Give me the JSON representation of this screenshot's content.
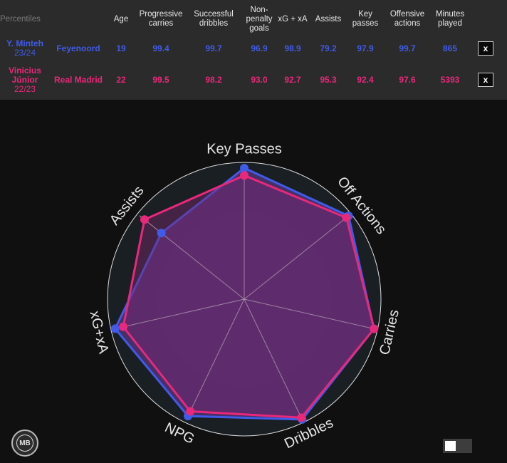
{
  "table": {
    "headers": {
      "percentiles": "Percentiles",
      "team": "",
      "age": "Age",
      "progressive_carries": "Progressive carries",
      "successful_dribbles": "Successful dribbles",
      "npg": "Non-penalty goals",
      "xg_xa": "xG + xA",
      "assists": "Assists",
      "key_passes": "Key passes",
      "offensive_actions": "Offensive actions",
      "minutes": "Minutes played"
    },
    "rows": [
      {
        "player": "Y. Minteh",
        "season": "23/24",
        "team": "Feyenoord",
        "age": "19",
        "progressive_carries": "99.4",
        "successful_dribbles": "99.7",
        "npg": "96.9",
        "xg_xa": "98.9",
        "assists": "79.2",
        "key_passes": "97.9",
        "offensive_actions": "99.7",
        "minutes": "865",
        "remove_label": "x",
        "color": "#3f5be8"
      },
      {
        "player": "Vinicius Júnior",
        "season": "22/23",
        "team": "Real Madrid",
        "age": "22",
        "progressive_carries": "99.5",
        "successful_dribbles": "98.2",
        "npg": "93.0",
        "xg_xa": "92.7",
        "assists": "95.3",
        "key_passes": "92.4",
        "offensive_actions": "97.6",
        "minutes": "5393",
        "remove_label": "x",
        "color": "#e8287a"
      }
    ]
  },
  "chart_data": {
    "type": "radar",
    "axes": [
      "Key Passes",
      "Off Actions",
      "Carries",
      "Dribbles",
      "NPG",
      "xG+xA",
      "Assists"
    ],
    "range": [
      0,
      100
    ],
    "series": [
      {
        "name": "Y. Minteh",
        "color": "#3f5be8",
        "values": [
          97.9,
          99.7,
          99.4,
          99.7,
          96.9,
          98.9,
          79.2
        ]
      },
      {
        "name": "Vinicius Júnior",
        "color": "#e8287a",
        "values": [
          92.4,
          97.6,
          99.5,
          98.2,
          93.0,
          92.7,
          95.3
        ]
      }
    ]
  },
  "logo": {
    "text": "MB"
  },
  "toggle": {
    "state": "off"
  }
}
